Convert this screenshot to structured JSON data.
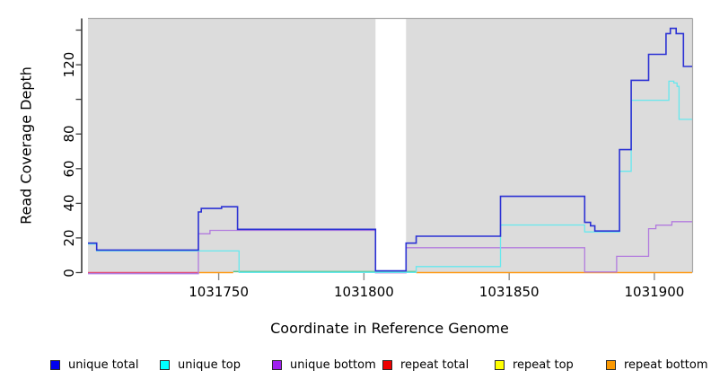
{
  "figure": {
    "y_axis_title": "Read Coverage Depth",
    "x_axis_title": "Coordinate in Reference Genome"
  },
  "legend": {
    "items": [
      {
        "label": "unique total",
        "color": "#0000EE"
      },
      {
        "label": "unique top",
        "color": "#00FFFF"
      },
      {
        "label": "unique bottom",
        "color": "#A020F0"
      },
      {
        "label": "repeat total",
        "color": "#EE0000"
      },
      {
        "label": "repeat top",
        "color": "#FFFF00"
      },
      {
        "label": "repeat bottom",
        "color": "#FB9902"
      }
    ]
  },
  "chart_data": {
    "type": "line",
    "subtype": "step-coverage",
    "title": "",
    "xlabel": "Coordinate in Reference Genome",
    "ylabel": "Read Coverage Depth",
    "plot_bg": "#DCDCDC",
    "border_color": "#A6A6A6",
    "axis_color": "#3C3C3C",
    "xtick_color": "#8C8C8C",
    "x_axis": {
      "range": [
        1031705,
        1031913
      ],
      "ticks": [
        1031750,
        1031800,
        1031850,
        1031900
      ]
    },
    "y_axis": {
      "range": [
        0,
        146
      ],
      "ticks": [
        0,
        20,
        40,
        60,
        80,
        100,
        120,
        140
      ],
      "labeled_ticks": [
        0,
        20,
        40,
        60,
        80,
        120
      ]
    },
    "gap_region": {
      "from": 1031804,
      "to": 1031814.5,
      "color": "#FFFFFF"
    },
    "series": [
      {
        "name": "unique total",
        "color": "#2B31D4",
        "points": [
          [
            1031705,
            17
          ],
          [
            1031708,
            13
          ],
          [
            1031743,
            35
          ],
          [
            1031744,
            37
          ],
          [
            1031751,
            38
          ],
          [
            1031756.5,
            25
          ],
          [
            1031804,
            1
          ],
          [
            1031814.5,
            17
          ],
          [
            1031818,
            21
          ],
          [
            1031847,
            44
          ],
          [
            1031876,
            29
          ],
          [
            1031878,
            27
          ],
          [
            1031879.5,
            24
          ],
          [
            1031888,
            71
          ],
          [
            1031892,
            111
          ],
          [
            1031898,
            126
          ],
          [
            1031904,
            138
          ],
          [
            1031905.5,
            141
          ],
          [
            1031907.5,
            138
          ],
          [
            1031910,
            119
          ]
        ],
        "end": 1031913
      },
      {
        "name": "unique top",
        "color": "#66E8EE",
        "points": [
          [
            1031705,
            17
          ],
          [
            1031708,
            13
          ],
          [
            1031757,
            0.6
          ],
          [
            1031818,
            4
          ],
          [
            1031847,
            28
          ],
          [
            1031876,
            24
          ],
          [
            1031888,
            59
          ],
          [
            1031892,
            100
          ],
          [
            1031905,
            111
          ],
          [
            1031906.7,
            110
          ],
          [
            1031907.8,
            108
          ],
          [
            1031908.5,
            89
          ]
        ],
        "end": 1031913
      },
      {
        "name": "unique bottom",
        "color": "#B27BDE",
        "points": [
          [
            1031705,
            0
          ],
          [
            1031743,
            23
          ],
          [
            1031747,
            25
          ],
          [
            1031804,
            0.5
          ],
          [
            1031814.5,
            15
          ],
          [
            1031876,
            1
          ],
          [
            1031887,
            10
          ],
          [
            1031898,
            26
          ],
          [
            1031900.5,
            28
          ],
          [
            1031906,
            30
          ]
        ],
        "end": 1031913
      },
      {
        "name": "repeat total",
        "color": "#E0507A",
        "points": [
          [
            1031705,
            0
          ]
        ],
        "end": 1031913,
        "skip_draw": true
      },
      {
        "name": "repeat top",
        "color": "#FFFF00",
        "points": [
          [
            1031705,
            0
          ]
        ],
        "end": 1031913,
        "skip_draw": true
      },
      {
        "name": "repeat bottom",
        "color": "#FF9913",
        "points": [
          [
            1031705,
            0
          ]
        ],
        "end": 1031913,
        "skip_draw": true
      }
    ],
    "zero_line_segments": [
      {
        "series": "repeat total",
        "color": "#E0507A",
        "from": 1031705,
        "to": 1031743,
        "value": 0
      },
      {
        "series": "repeat bottom",
        "color": "#FF9913",
        "from": 1031743,
        "to": 1031755,
        "value": 0
      },
      {
        "series": "unique top over repeat top",
        "color": "#56C98F",
        "from": 1031755,
        "to": 1031818,
        "value": 0.6
      },
      {
        "series": "repeat bottom",
        "color": "#FF9913",
        "from": 1031818,
        "to": 1031913,
        "value": 0
      }
    ]
  }
}
